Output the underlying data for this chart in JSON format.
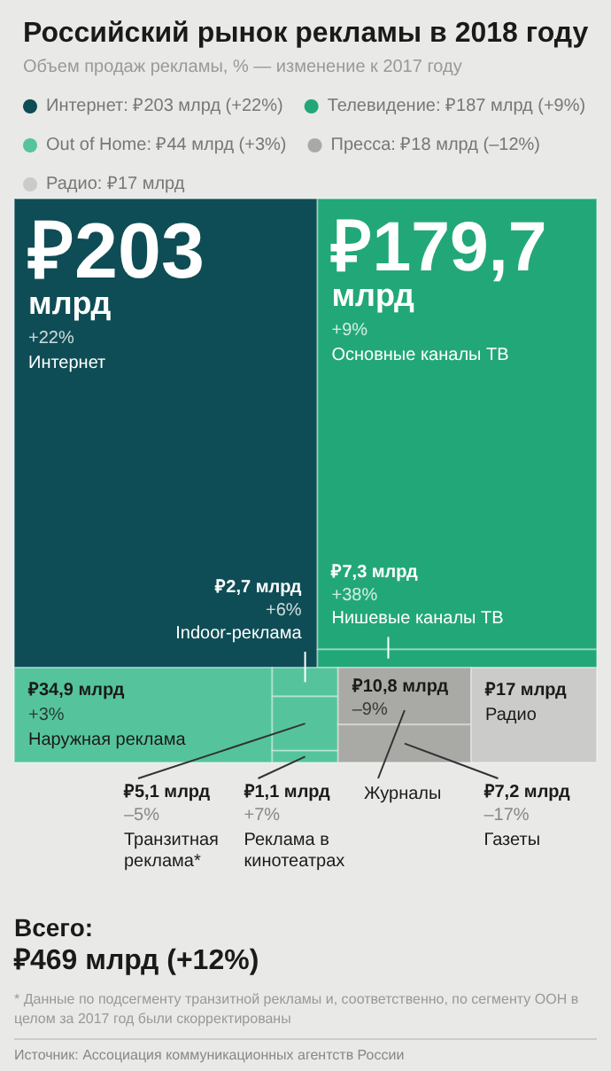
{
  "chart_data": {
    "type": "other",
    "title": "Российский рынок рекламы в 2018 году",
    "subtitle": "Объем продаж рекламы, % — изменение к 2017 году",
    "legend": "top left",
    "categories": [
      "Интернет",
      "Основные каналы ТВ",
      "Нишевые каналы ТВ",
      "Наружная реклама",
      "Indoor-реклама",
      "Транзитная реклама*",
      "Реклама в кинотеатрах",
      "Журналы",
      "Газеты",
      "Радио"
    ],
    "series": [
      {
        "name": "Интернет: ₽203 млрд (+22%)",
        "color": "#0e4d55",
        "values": [
          203,
          null,
          null,
          null,
          null,
          null,
          null,
          null,
          null,
          null
        ],
        "value_labels": [
          "₽203 млрд\n+22%",
          null,
          null,
          null,
          null,
          null,
          null,
          null,
          null,
          null
        ]
      },
      {
        "name": "Телевидение: ₽187 млрд (+9%)",
        "color": "#22a878",
        "values": [
          null,
          179.7,
          7.3,
          null,
          null,
          null,
          null,
          null,
          null,
          null
        ],
        "value_labels": [
          null,
          "₽179,7 млрд\n+9%",
          "₽7,3 млрд\n+38%",
          null,
          null,
          null,
          null,
          null,
          null,
          null
        ]
      },
      {
        "name": "Out of Home: ₽44 млрд (+3%)",
        "color": "#55c49d",
        "values": [
          null,
          null,
          null,
          34.9,
          2.7,
          5.1,
          1.1,
          null,
          null,
          null
        ],
        "value_labels": [
          null,
          null,
          null,
          "₽34,9 млрд\n+3%",
          "₽2,7 млрд\n+6%",
          "₽5,1 млрд\n–5%",
          "₽1,1 млрд\n+7%",
          null,
          null,
          null
        ]
      },
      {
        "name": "Пресса: ₽18 млрд (–12%)",
        "color": "#a9a9a6",
        "values": [
          null,
          null,
          null,
          null,
          null,
          null,
          null,
          10.8,
          7.2,
          null
        ],
        "value_labels": [
          null,
          null,
          null,
          null,
          null,
          null,
          null,
          "₽10,8 млрд\n–9%",
          "₽7,2 млрд\n–17%",
          null
        ]
      },
      {
        "name": "Радио: ₽17 млрд",
        "color": "#cbcbc9",
        "values": [
          null,
          null,
          null,
          null,
          null,
          null,
          null,
          null,
          null,
          17
        ],
        "value_labels": [
          null,
          null,
          null,
          null,
          null,
          null,
          null,
          null,
          null,
          "₽17 млрд"
        ]
      }
    ],
    "annotations": [
      "Всего:",
      "₽469 млрд (+12%)",
      "* Данные по подсегменту транзитной рекламы и, соответственно, по сегменту ООН в целом за 2017 год были скорректированы",
      "Источник: Ассоциация коммуникационных агентств России"
    ]
  }
}
